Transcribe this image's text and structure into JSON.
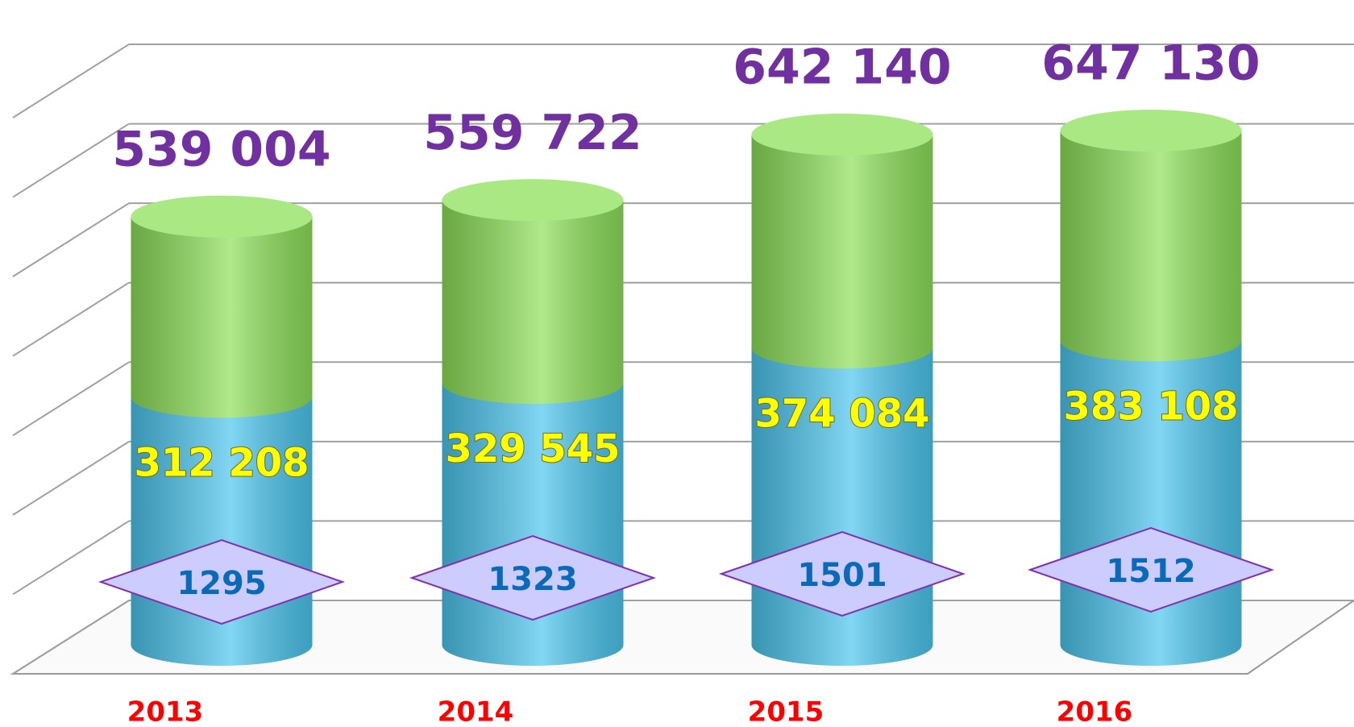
{
  "chart_data": {
    "type": "bar",
    "categories": [
      "2013",
      "2014",
      "2015",
      "2016"
    ],
    "series": [
      {
        "color": "#4cc6ee",
        "values": [
          312208,
          329545,
          374084,
          383108
        ],
        "value_labels": [
          "312 208",
          "329 545",
          "374 084",
          "383 108"
        ]
      },
      {
        "color": "#8ee05a",
        "values": [
          226796,
          230177,
          268056,
          264022
        ]
      }
    ],
    "totals": [
      539004,
      559722,
      642140,
      647130
    ],
    "total_labels": [
      "539 004",
      "559 722",
      "642 140",
      "647 130"
    ],
    "counts": [
      1295,
      1323,
      1501,
      1512
    ],
    "ylim": [
      0,
      700000
    ],
    "yticks": [
      0,
      100000,
      200000,
      300000,
      400000,
      500000,
      600000,
      700000
    ],
    "grid": true
  }
}
